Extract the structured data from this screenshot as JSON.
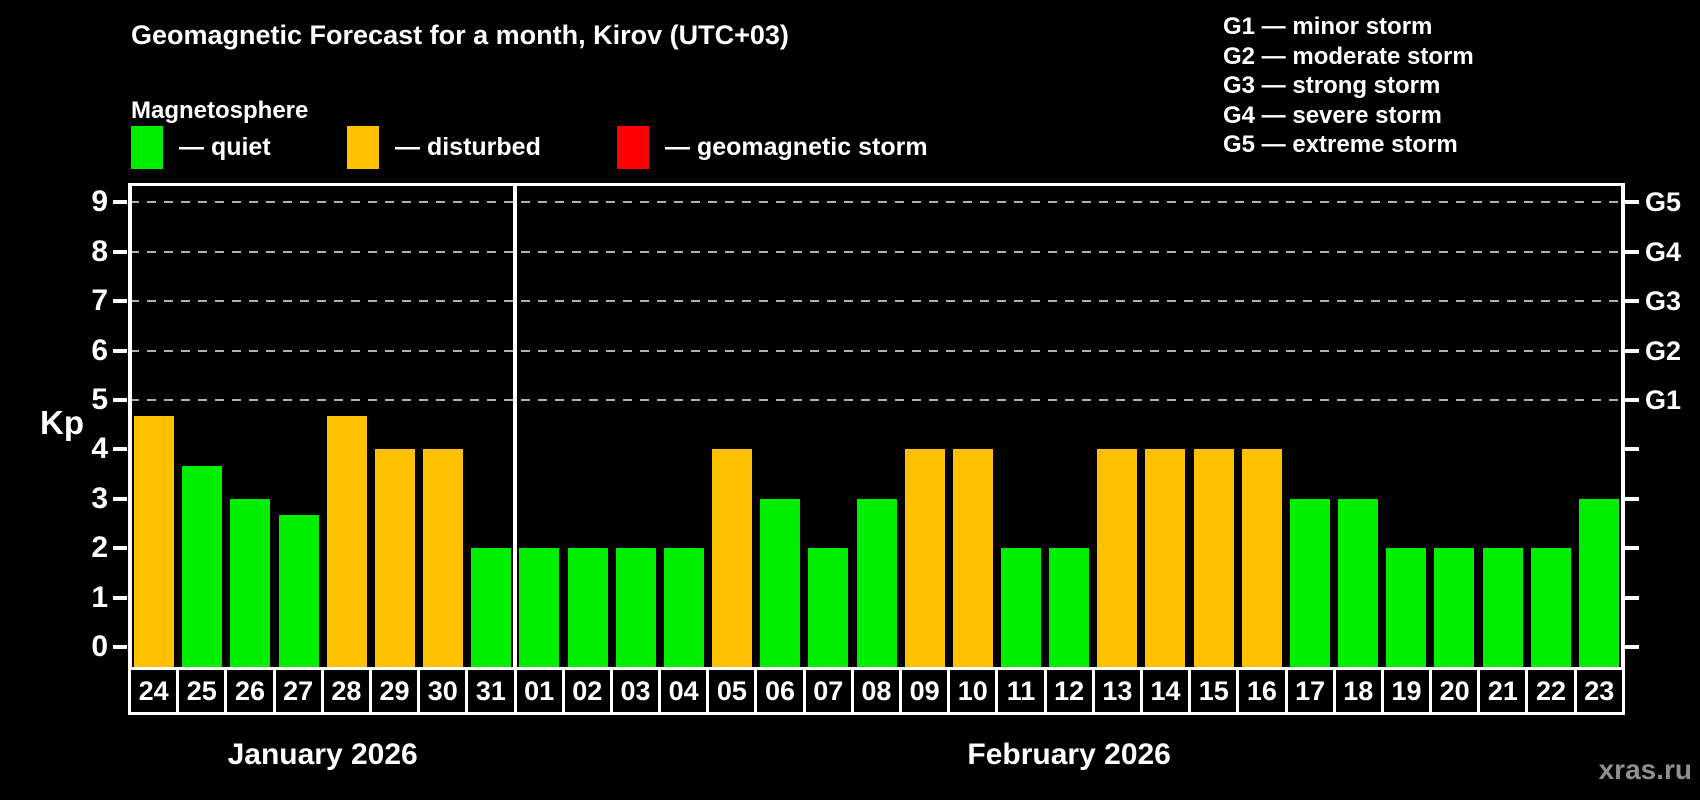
{
  "header": {
    "title": "Geomagnetic Forecast for a month, Kirov (UTC+03)",
    "subtitle": "Magnetosphere"
  },
  "legend": {
    "items": [
      {
        "key": "quiet",
        "label": "— quiet",
        "color": "#00ee00",
        "x": 131
      },
      {
        "key": "disturbed",
        "label": "— disturbed",
        "color": "#ffc000",
        "x": 347
      },
      {
        "key": "storm",
        "label": "— geomagnetic storm",
        "color": "#ff0000",
        "x": 617
      }
    ]
  },
  "g_legend": [
    "G1 — minor storm",
    "G2 — moderate storm",
    "G3 — strong storm",
    "G4 — severe storm",
    "G5 — extreme storm"
  ],
  "watermark": "xras.ru",
  "colors": {
    "background": "#000000",
    "quiet": "#00ee00",
    "disturbed": "#ffc000",
    "storm": "#ff0000",
    "axis": "#ffffff",
    "grid": "#b0b0b0",
    "watermark": "#8f8f8f"
  },
  "chart_data": {
    "type": "bar",
    "title": "Geomagnetic Forecast for a month, Kirov (UTC+03)",
    "ylabel": "Kp",
    "ylim": [
      0,
      9.4
    ],
    "yticks": [
      0,
      1,
      2,
      3,
      4,
      5,
      6,
      7,
      8,
      9
    ],
    "gridlines_at_kp": [
      5,
      6,
      7,
      8,
      9
    ],
    "grid": "dashed horizontal at Kp 5-9",
    "legend_position": "top",
    "right_axis": [
      {
        "kp": 5,
        "label": "G1"
      },
      {
        "kp": 6,
        "label": "G2"
      },
      {
        "kp": 7,
        "label": "G3"
      },
      {
        "kp": 8,
        "label": "G4"
      },
      {
        "kp": 9,
        "label": "G5"
      }
    ],
    "months": [
      {
        "label": "January 2026",
        "count": 8
      },
      {
        "label": "February 2026",
        "count": 23
      }
    ],
    "bars": [
      {
        "day": "24",
        "kp": 4.67,
        "status": "disturbed"
      },
      {
        "day": "25",
        "kp": 3.67,
        "status": "quiet"
      },
      {
        "day": "26",
        "kp": 3,
        "status": "quiet"
      },
      {
        "day": "27",
        "kp": 2.67,
        "status": "quiet"
      },
      {
        "day": "28",
        "kp": 4.67,
        "status": "disturbed"
      },
      {
        "day": "29",
        "kp": 4,
        "status": "disturbed"
      },
      {
        "day": "30",
        "kp": 4,
        "status": "disturbed"
      },
      {
        "day": "31",
        "kp": 2,
        "status": "quiet"
      },
      {
        "day": "01",
        "kp": 2,
        "status": "quiet"
      },
      {
        "day": "02",
        "kp": 2,
        "status": "quiet"
      },
      {
        "day": "03",
        "kp": 2,
        "status": "quiet"
      },
      {
        "day": "04",
        "kp": 2,
        "status": "quiet"
      },
      {
        "day": "05",
        "kp": 4,
        "status": "disturbed"
      },
      {
        "day": "06",
        "kp": 3,
        "status": "quiet"
      },
      {
        "day": "07",
        "kp": 2,
        "status": "quiet"
      },
      {
        "day": "08",
        "kp": 3,
        "status": "quiet"
      },
      {
        "day": "09",
        "kp": 4,
        "status": "disturbed"
      },
      {
        "day": "10",
        "kp": 4,
        "status": "disturbed"
      },
      {
        "day": "11",
        "kp": 2,
        "status": "quiet"
      },
      {
        "day": "12",
        "kp": 2,
        "status": "quiet"
      },
      {
        "day": "13",
        "kp": 4,
        "status": "disturbed"
      },
      {
        "day": "14",
        "kp": 4,
        "status": "disturbed"
      },
      {
        "day": "15",
        "kp": 4,
        "status": "disturbed"
      },
      {
        "day": "16",
        "kp": 4,
        "status": "disturbed"
      },
      {
        "day": "17",
        "kp": 3,
        "status": "quiet"
      },
      {
        "day": "18",
        "kp": 3,
        "status": "quiet"
      },
      {
        "day": "19",
        "kp": 2,
        "status": "quiet"
      },
      {
        "day": "20",
        "kp": 2,
        "status": "quiet"
      },
      {
        "day": "21",
        "kp": 2,
        "status": "quiet"
      },
      {
        "day": "22",
        "kp": 2,
        "status": "quiet"
      },
      {
        "day": "23",
        "kp": 3,
        "status": "quiet"
      }
    ]
  }
}
